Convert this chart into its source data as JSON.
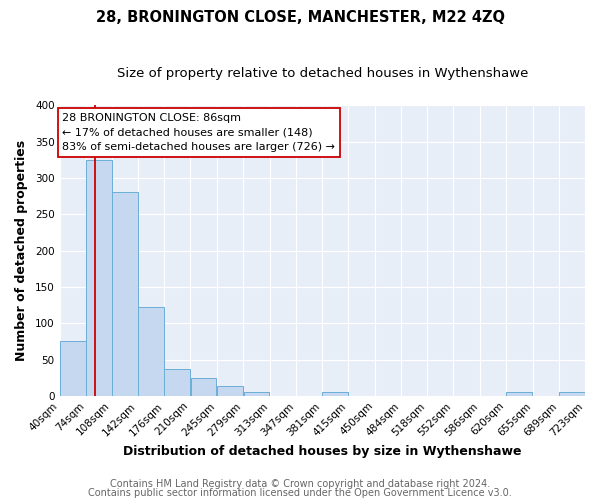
{
  "title": "28, BRONINGTON CLOSE, MANCHESTER, M22 4ZQ",
  "subtitle": "Size of property relative to detached houses in Wythenshawe",
  "xlabel": "Distribution of detached houses by size in Wythenshawe",
  "ylabel": "Number of detached properties",
  "bar_left_edges": [
    40,
    74,
    108,
    142,
    176,
    210,
    245,
    279,
    313,
    347,
    381,
    415,
    450,
    484,
    518,
    552,
    586,
    620,
    655,
    689
  ],
  "bar_heights": [
    76,
    325,
    280,
    122,
    37,
    25,
    14,
    5,
    0,
    0,
    5,
    0,
    0,
    0,
    0,
    0,
    0,
    5,
    0,
    5
  ],
  "bin_width": 34,
  "bar_color": "#c5d8f0",
  "bar_edge_color": "#6aaed6",
  "tick_labels": [
    "40sqm",
    "74sqm",
    "108sqm",
    "142sqm",
    "176sqm",
    "210sqm",
    "245sqm",
    "279sqm",
    "313sqm",
    "347sqm",
    "381sqm",
    "415sqm",
    "450sqm",
    "484sqm",
    "518sqm",
    "552sqm",
    "586sqm",
    "620sqm",
    "655sqm",
    "689sqm",
    "723sqm"
  ],
  "red_line_x": 86,
  "annotation_title": "28 BRONINGTON CLOSE: 86sqm",
  "annotation_line1": "← 17% of detached houses are smaller (148)",
  "annotation_line2": "83% of semi-detached houses are larger (726) →",
  "ylim": [
    0,
    400
  ],
  "yticks": [
    0,
    50,
    100,
    150,
    200,
    250,
    300,
    350,
    400
  ],
  "footer_line1": "Contains HM Land Registry data © Crown copyright and database right 2024.",
  "footer_line2": "Contains public sector information licensed under the Open Government Licence v3.0.",
  "plot_bg_color": "#e8eef8",
  "fig_bg_color": "#ffffff",
  "grid_color": "#ffffff",
  "title_fontsize": 10.5,
  "subtitle_fontsize": 9.5,
  "axis_label_fontsize": 9,
  "tick_fontsize": 7.5,
  "footer_fontsize": 7,
  "annot_fontsize": 8
}
